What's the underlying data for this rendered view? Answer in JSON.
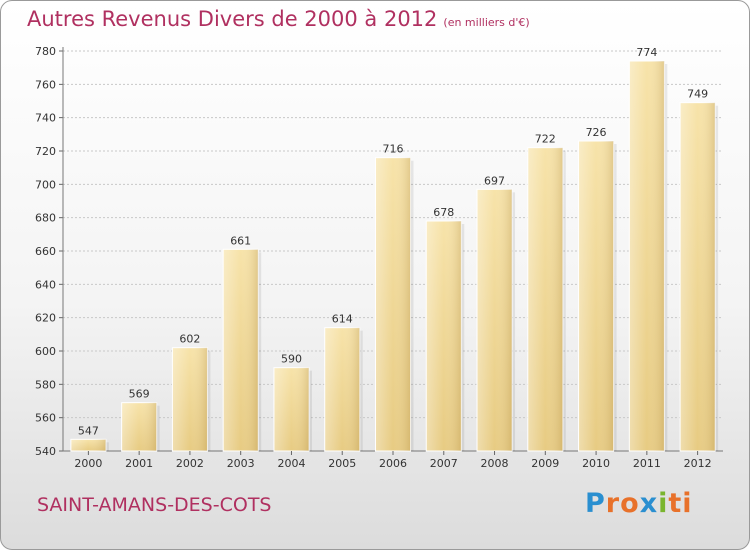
{
  "chart_data": {
    "type": "bar",
    "title": "Autres Revenus Divers de 2000 à 2012",
    "subtitle": "(en milliers d'€)",
    "categories": [
      "2000",
      "2001",
      "2002",
      "2003",
      "2004",
      "2005",
      "2006",
      "2007",
      "2008",
      "2009",
      "2010",
      "2011",
      "2012"
    ],
    "values": [
      547,
      569,
      602,
      661,
      590,
      614,
      716,
      678,
      697,
      722,
      726,
      774,
      749
    ],
    "ylim": [
      540,
      780
    ],
    "yticks": [
      540,
      560,
      580,
      600,
      620,
      640,
      660,
      680,
      700,
      720,
      740,
      760,
      780
    ],
    "grid": true,
    "xlabel": "",
    "ylabel": "",
    "bar_color": "#e7cb82"
  },
  "footer": {
    "city": "SAINT-AMANS-DES-COTS",
    "logo": "Proxiti"
  },
  "colors": {
    "title": "#b03060",
    "logo_letters": [
      "#2a8fd0",
      "#e8712a",
      "#e8712a",
      "#2a8fd0",
      "#7ab52e",
      "#e8712a",
      "#e8712a"
    ]
  }
}
